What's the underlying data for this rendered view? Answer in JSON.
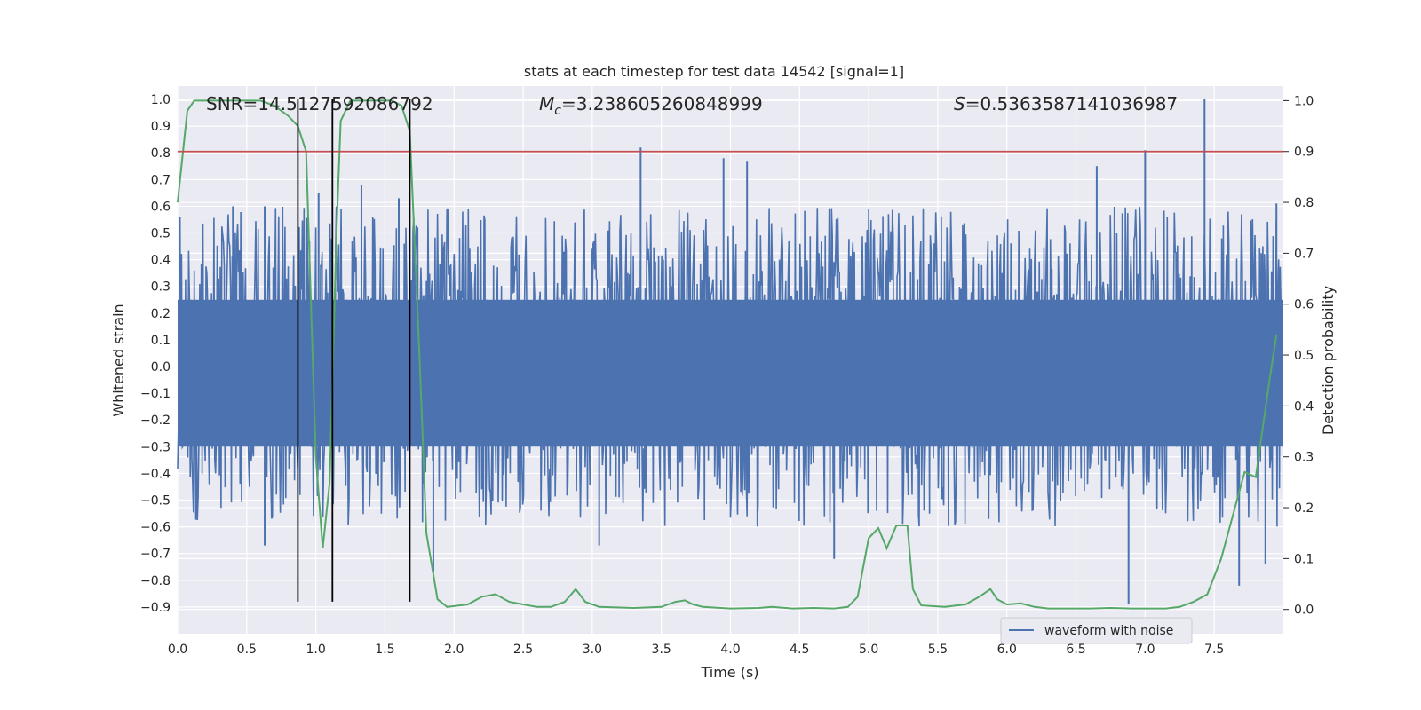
{
  "chart_data": {
    "type": "line",
    "title": "stats at each timestep for test data 14542 [signal=1]",
    "xlabel": "Time (s)",
    "ylabel": "Whitened strain",
    "y2label": "Detection probability",
    "xlim": [
      0.0,
      8.0
    ],
    "ylim": [
      -1.0,
      1.05
    ],
    "y2lim": [
      -0.04762,
      1.0286
    ],
    "x_ticks": [
      0.0,
      0.5,
      1.0,
      1.5,
      2.0,
      2.5,
      3.0,
      3.5,
      4.0,
      4.5,
      5.0,
      5.5,
      6.0,
      6.5,
      7.0,
      7.5
    ],
    "x_tick_labels": [
      "0.0",
      "0.5",
      "1.0",
      "1.5",
      "2.0",
      "2.5",
      "3.0",
      "3.5",
      "4.0",
      "4.5",
      "5.0",
      "5.5",
      "6.0",
      "6.5",
      "7.0",
      "7.5"
    ],
    "y_ticks": [
      1.0,
      0.9,
      0.8,
      0.7,
      0.6,
      0.5,
      0.4,
      0.3,
      0.2,
      0.1,
      0.0,
      -0.1,
      -0.2,
      -0.3,
      -0.4,
      -0.5,
      -0.6,
      -0.7,
      -0.8,
      -0.9
    ],
    "y_tick_labels": [
      "1.0",
      "0.9",
      "0.8",
      "0.7",
      "0.6",
      "0.5",
      "0.4",
      "0.3",
      "0.2",
      "0.1",
      "0.0",
      "−0.1",
      "−0.2",
      "−0.3",
      "−0.4",
      "−0.5",
      "−0.6",
      "−0.7",
      "−0.8",
      "−0.9"
    ],
    "y2_ticks": [
      1.0,
      0.9,
      0.8,
      0.7,
      0.6,
      0.5,
      0.4,
      0.3,
      0.2,
      0.1,
      0.0
    ],
    "y2_tick_labels": [
      "1.0",
      "0.9",
      "0.8",
      "0.7",
      "0.6",
      "0.5",
      "0.4",
      "0.3",
      "0.2",
      "0.1",
      "0.0"
    ],
    "grid": true,
    "legend": {
      "placement": "lower-right",
      "entries": [
        "waveform with noise"
      ]
    },
    "stats": {
      "snr": "SNR=14.5127592086792",
      "mc_symbol": "M",
      "mc_sub": "c",
      "mc_value": "=3.238605260848999",
      "s_symbol": "S",
      "s_value": "=0.5363587141036987"
    },
    "threshold_line": {
      "y2": 0.9
    },
    "event_lines": [
      0.87,
      1.12,
      1.68
    ],
    "waveform": {
      "name": "waveform with noise",
      "envelope_min": -0.6,
      "envelope_max": 0.6,
      "peaks": [
        {
          "x": 0.4,
          "y": 0.6
        },
        {
          "x": 0.63,
          "y": 0.6
        },
        {
          "x": 1.02,
          "y": 0.65
        },
        {
          "x": 1.33,
          "y": 0.68
        },
        {
          "x": 1.6,
          "y": 0.63
        },
        {
          "x": 3.35,
          "y": 0.82
        },
        {
          "x": 3.95,
          "y": 0.78
        },
        {
          "x": 4.12,
          "y": 0.77
        },
        {
          "x": 6.65,
          "y": 0.75
        },
        {
          "x": 7.0,
          "y": 0.81
        },
        {
          "x": 7.43,
          "y": 1.0
        },
        {
          "x": 7.95,
          "y": 0.61
        }
      ],
      "troughs": [
        {
          "x": 0.63,
          "y": -0.67
        },
        {
          "x": 1.85,
          "y": -0.77
        },
        {
          "x": 3.05,
          "y": -0.67
        },
        {
          "x": 4.75,
          "y": -0.72
        },
        {
          "x": 6.88,
          "y": -0.89
        },
        {
          "x": 7.68,
          "y": -0.82
        },
        {
          "x": 7.87,
          "y": -0.74
        }
      ]
    },
    "detection_probability": {
      "color": "#55a868",
      "x": [
        0.0,
        0.07,
        0.12,
        0.2,
        0.3,
        0.45,
        0.6,
        0.7,
        0.8,
        0.87,
        0.93,
        1.0,
        1.05,
        1.1,
        1.15,
        1.18,
        1.25,
        1.3,
        1.4,
        1.55,
        1.62,
        1.68,
        1.75,
        1.8,
        1.88,
        1.95,
        2.1,
        2.2,
        2.3,
        2.4,
        2.5,
        2.6,
        2.7,
        2.8,
        2.88,
        2.95,
        3.05,
        3.3,
        3.5,
        3.6,
        3.67,
        3.73,
        3.8,
        4.0,
        4.2,
        4.3,
        4.45,
        4.6,
        4.75,
        4.85,
        4.92,
        5.0,
        5.07,
        5.13,
        5.2,
        5.28,
        5.32,
        5.38,
        5.55,
        5.7,
        5.8,
        5.88,
        5.93,
        6.0,
        6.1,
        6.2,
        6.3,
        6.45,
        6.6,
        6.75,
        6.9,
        7.0,
        7.15,
        7.25,
        7.35,
        7.45,
        7.55,
        7.65,
        7.72,
        7.8,
        7.9,
        7.95
      ],
      "y": [
        0.8,
        0.98,
        1.0,
        1.0,
        1.0,
        1.0,
        1.0,
        0.99,
        0.97,
        0.95,
        0.9,
        0.3,
        0.12,
        0.25,
        0.75,
        0.96,
        1.0,
        1.0,
        1.0,
        1.0,
        0.99,
        0.94,
        0.5,
        0.15,
        0.02,
        0.005,
        0.01,
        0.025,
        0.03,
        0.015,
        0.01,
        0.005,
        0.005,
        0.015,
        0.04,
        0.015,
        0.005,
        0.003,
        0.005,
        0.015,
        0.018,
        0.01,
        0.005,
        0.002,
        0.003,
        0.005,
        0.002,
        0.003,
        0.002,
        0.005,
        0.025,
        0.14,
        0.16,
        0.12,
        0.165,
        0.165,
        0.04,
        0.008,
        0.005,
        0.01,
        0.025,
        0.04,
        0.02,
        0.01,
        0.012,
        0.005,
        0.002,
        0.002,
        0.002,
        0.003,
        0.002,
        0.002,
        0.002,
        0.005,
        0.015,
        0.03,
        0.1,
        0.2,
        0.27,
        0.26,
        0.45,
        0.54
      ]
    },
    "colors": {
      "axes_bg": "#eaeaf2",
      "grid": "#ffffff",
      "waveform": "#4c72b0",
      "probability": "#55a868",
      "threshold": "#c44e52",
      "event": "#000000"
    }
  }
}
